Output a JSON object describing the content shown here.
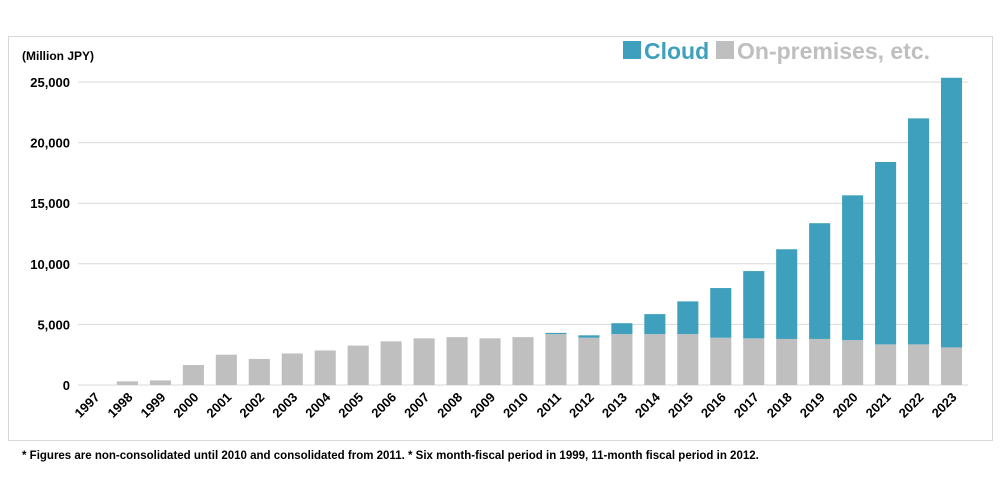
{
  "chart_data": {
    "type": "bar",
    "stacked": true,
    "title": "",
    "xlabel": "",
    "ylabel": "(Million JPY)",
    "ylim": [
      0,
      25000
    ],
    "yticks": [
      0,
      5000,
      10000,
      15000,
      20000,
      25000
    ],
    "ytick_labels": [
      "0",
      "5,000",
      "10,000",
      "15,000",
      "20,000",
      "25,000"
    ],
    "grid": true,
    "legend_position": "top-right",
    "categories": [
      "1997",
      "1998",
      "1999",
      "2000",
      "2001",
      "2002",
      "2003",
      "2004",
      "2005",
      "2006",
      "2007",
      "2008",
      "2009",
      "2010",
      "2011",
      "2012",
      "2013",
      "2014",
      "2015",
      "2016",
      "2017",
      "2018",
      "2019",
      "2020",
      "2021",
      "2022",
      "2023"
    ],
    "series": [
      {
        "name": "On-premises, etc.",
        "color": "#bfbfbf",
        "values": [
          0,
          300,
          380,
          1650,
          2500,
          2150,
          2600,
          2850,
          3250,
          3600,
          3850,
          3950,
          3850,
          3950,
          4200,
          3900,
          4200,
          4200,
          4200,
          3900,
          3850,
          3800,
          3800,
          3700,
          3350,
          3350,
          3100
        ]
      },
      {
        "name": "Cloud",
        "color": "#3fa0bd",
        "values": [
          0,
          0,
          0,
          0,
          0,
          0,
          0,
          0,
          0,
          0,
          0,
          0,
          0,
          0,
          100,
          200,
          900,
          1650,
          2700,
          4100,
          5550,
          7400,
          9550,
          11950,
          15050,
          18650,
          22250
        ]
      }
    ]
  },
  "footnote": "* Figures are non-consolidated until 2010 and consolidated from 2011. * Six month-fiscal period in 1999, 11-month fiscal period in 2012."
}
